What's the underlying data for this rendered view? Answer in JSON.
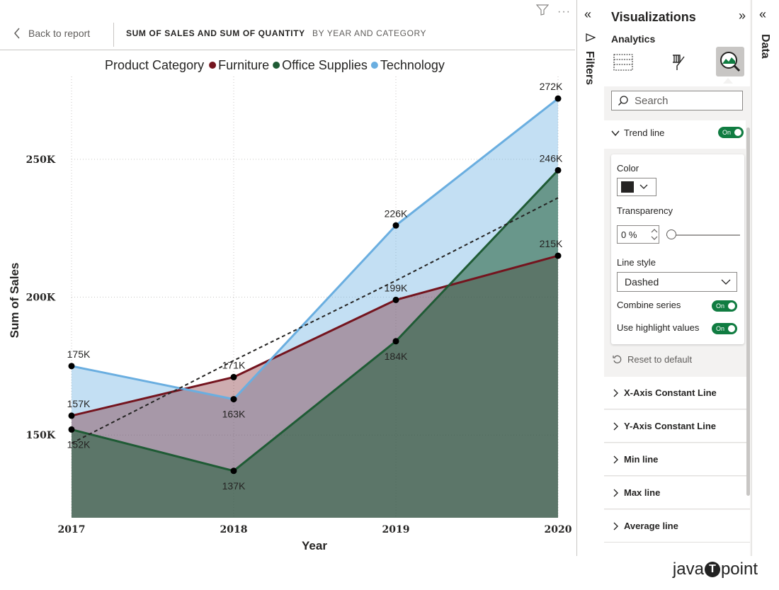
{
  "report": {
    "back_label": "Back to report",
    "title": "SUM OF SALES AND SUM OF QUANTITY",
    "subtitle": "BY YEAR AND CATEGORY"
  },
  "chart_data": {
    "type": "area",
    "legend_title": "Product Category",
    "legend_position": "top",
    "xlabel": "Year",
    "ylabel": "Sum of Sales",
    "x": [
      "2017",
      "2018",
      "2019",
      "2020"
    ],
    "yticks": [
      "150K",
      "200K",
      "250K"
    ],
    "ylim": [
      120000,
      280000
    ],
    "series": [
      {
        "name": "Furniture",
        "color": "#74141e",
        "values": [
          157000,
          171000,
          199000,
          215000
        ],
        "labels": [
          "157K",
          "171K",
          "199K",
          "215K"
        ]
      },
      {
        "name": "Office Supplies",
        "color": "#1f5b35",
        "values": [
          152000,
          137000,
          184000,
          246000
        ],
        "labels": [
          "152K",
          "137K",
          "184K",
          "246K"
        ]
      },
      {
        "name": "Technology",
        "color": "#6aaee0",
        "values": [
          175000,
          163000,
          226000,
          272000
        ],
        "labels": [
          "175K",
          "163K",
          "226K",
          "272K"
        ]
      }
    ],
    "trend_line": {
      "style": "dashed",
      "color": "#252423",
      "values": [
        147000,
        177000,
        206000,
        236000
      ]
    }
  },
  "filters": {
    "label": "Filters"
  },
  "data_pane": {
    "label": "Data"
  },
  "viz_pane": {
    "title": "Visualizations",
    "tab": "Analytics",
    "search_placeholder": "Search",
    "trend": {
      "label": "Trend line",
      "toggle": "On",
      "color_label": "Color",
      "color_value": "#252423",
      "transparency_label": "Transparency",
      "transparency_value": "0 %",
      "line_style_label": "Line style",
      "line_style_value": "Dashed",
      "combine_label": "Combine series",
      "combine_toggle": "On",
      "highlight_label": "Use highlight values",
      "highlight_toggle": "On"
    },
    "reset_label": "Reset to default",
    "sections": [
      "X-Axis Constant Line",
      "Y-Axis Constant Line",
      "Min line",
      "Max line",
      "Average line"
    ]
  },
  "brand": {
    "left": "java",
    "mark": "T",
    "right": "point"
  }
}
